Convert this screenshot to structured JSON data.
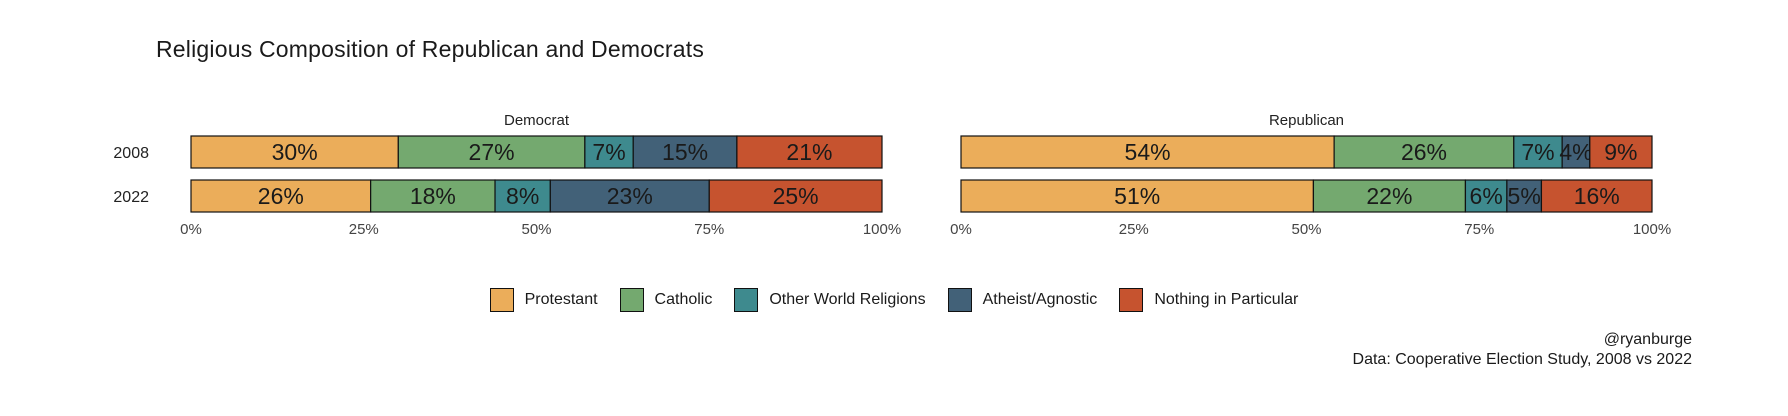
{
  "chart_data": {
    "type": "bar",
    "orientation": "horizontal",
    "stacked": true,
    "title": "Religious Composition of Republican and Democrats",
    "categories": [
      "2008",
      "2022"
    ],
    "xlim": [
      0,
      100
    ],
    "x_ticks": [
      "0%",
      "25%",
      "50%",
      "75%",
      "100%"
    ],
    "legend_position": "bottom",
    "legend": [
      "Protestant",
      "Catholic",
      "Other World Religions",
      "Atheist/Agnostic",
      "Nothing in Particular"
    ],
    "colors": {
      "Protestant": "#EBAD5A",
      "Catholic": "#74A96F",
      "Other World Religions": "#3E8A8E",
      "Atheist/Agnostic": "#426178",
      "Nothing in Particular": "#C6532F"
    },
    "panels": [
      {
        "name": "Democrat",
        "rows": [
          {
            "year": "2008",
            "values": [
              30,
              27,
              7,
              15,
              21
            ],
            "labels": [
              "30%",
              "27%",
              "7%",
              "15%",
              "21%"
            ]
          },
          {
            "year": "2022",
            "values": [
              26,
              18,
              8,
              23,
              25
            ],
            "labels": [
              "26%",
              "18%",
              "8%",
              "23%",
              "25%"
            ]
          }
        ]
      },
      {
        "name": "Republican",
        "rows": [
          {
            "year": "2008",
            "values": [
              54,
              26,
              7,
              4,
              9
            ],
            "labels": [
              "54%",
              "26%",
              "7%",
              "4%",
              "9%"
            ]
          },
          {
            "year": "2022",
            "values": [
              51,
              22,
              6,
              5,
              16
            ],
            "labels": [
              "51%",
              "22%",
              "6%",
              "5%",
              "16%"
            ]
          }
        ]
      }
    ]
  },
  "caption": {
    "handle": "@ryanburge",
    "source": "Data: Cooperative Election Study, 2008 vs 2022"
  }
}
